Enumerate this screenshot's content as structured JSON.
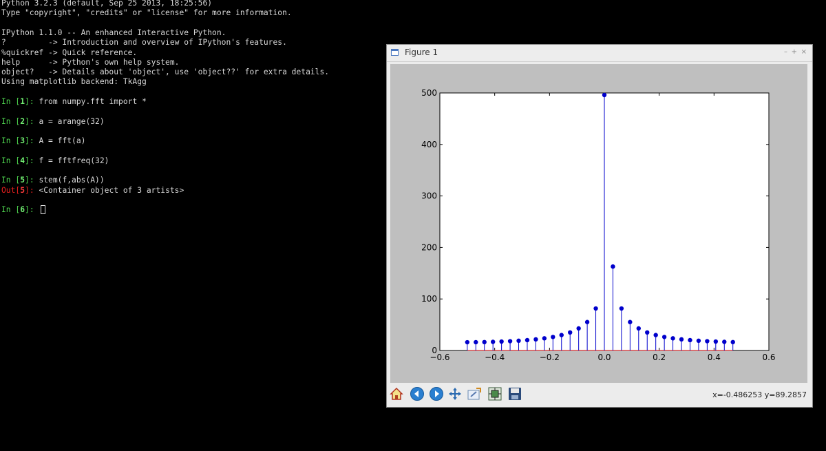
{
  "terminal": {
    "banner": [
      "Python 3.2.3 (default, Sep 25 2013, 18:25:56)",
      "Type \"copyright\", \"credits\" or \"license\" for more information.",
      "",
      "IPython 1.1.0 -- An enhanced Interactive Python.",
      "?         -> Introduction and overview of IPython's features.",
      "%quickref -> Quick reference.",
      "help      -> Python's own help system.",
      "object?   -> Details about 'object', use 'object??' for extra details.",
      "Using matplotlib backend: TkAgg"
    ],
    "in_label": "In",
    "out_label": "Out",
    "cells": [
      {
        "n": "1",
        "code": "from numpy.fft import *"
      },
      {
        "n": "2",
        "code": "a = arange(32)"
      },
      {
        "n": "3",
        "code": "A = fft(a)"
      },
      {
        "n": "4",
        "code": "f = fftfreq(32)"
      },
      {
        "n": "5",
        "code": "stem(f,abs(A))",
        "out": "<Container object of 3 artists>"
      },
      {
        "n": "6",
        "code": ""
      }
    ]
  },
  "window": {
    "title": "Figure 1",
    "minimize": "–",
    "maximize": "+",
    "close": "×"
  },
  "toolbar": {
    "buttons": [
      "home-icon",
      "back-icon",
      "forward-icon",
      "pan-icon",
      "zoom-icon",
      "configure-subplots-icon",
      "save-icon"
    ],
    "coords": "x=-0.486253   y=89.2857"
  },
  "chart_data": {
    "type": "stem",
    "xlim": [
      -0.6,
      0.6
    ],
    "ylim": [
      0,
      500
    ],
    "xticks": [
      "−0.6",
      "−0.4",
      "−0.2",
      "0.0",
      "0.2",
      "0.4",
      "0.6"
    ],
    "yticks": [
      "0",
      "100",
      "200",
      "300",
      "400",
      "500"
    ],
    "color": "#0000cc",
    "x": [
      -0.5,
      -0.46875,
      -0.4375,
      -0.40625,
      -0.375,
      -0.34375,
      -0.3125,
      -0.28125,
      -0.25,
      -0.21875,
      -0.1875,
      -0.15625,
      -0.125,
      -0.09375,
      -0.0625,
      -0.03125,
      0.0,
      0.03125,
      0.0625,
      0.09375,
      0.125,
      0.15625,
      0.1875,
      0.21875,
      0.25,
      0.28125,
      0.3125,
      0.34375,
      0.375,
      0.40625,
      0.4375,
      0.46875
    ],
    "y": [
      16.0,
      16.1,
      16.3,
      16.7,
      17.3,
      18.0,
      18.9,
      20.1,
      21.6,
      23.6,
      26.2,
      29.9,
      35.0,
      42.8,
      55.2,
      81.5,
      496.0,
      163.0,
      81.5,
      55.2,
      42.8,
      35.0,
      29.9,
      26.2,
      23.6,
      21.6,
      20.1,
      18.9,
      18.0,
      17.3,
      16.7,
      16.3
    ]
  }
}
